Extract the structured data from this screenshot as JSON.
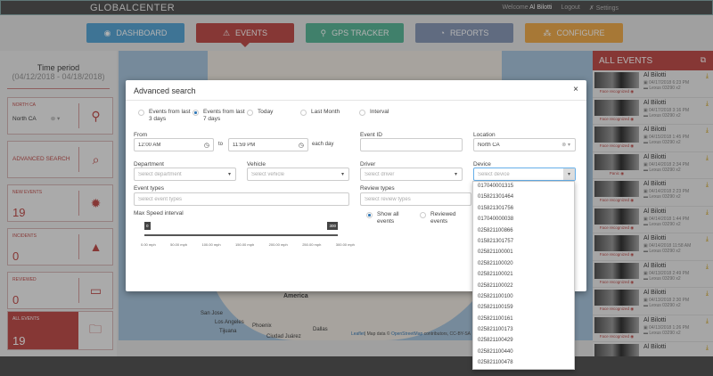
{
  "header": {
    "logo": "GLOBALCENTER",
    "welcome": "Welcome",
    "user": "Al Bilotti",
    "logout": "Logout",
    "settings": "Settings"
  },
  "nav": [
    {
      "label": "DASHBOARD",
      "color": "#5aa7d6",
      "icon": "dashboard-icon"
    },
    {
      "label": "EVENTS",
      "color": "#c0504d",
      "icon": "warning-icon"
    },
    {
      "label": "GPS TRACKER",
      "color": "#5cb89a",
      "icon": "location-pin-icon"
    },
    {
      "label": "REPORTS",
      "color": "#8a9ab8",
      "icon": "chart-pie-icon"
    },
    {
      "label": "CONFIGURE",
      "color": "#f0ad4e",
      "icon": "sitemap-icon"
    }
  ],
  "left": {
    "time_period": "Time period",
    "date_range": "(04/12/2018 - 04/18/2018)",
    "location_label": "NORTH CA",
    "location_value": "North CA",
    "advanced_search": "ADVANCED SEARCH",
    "new_events_label": "NEW EVENTS",
    "new_events": "19",
    "incidents_label": "INCIDENTS",
    "incidents": "0",
    "reviewed_label": "REVIEWED",
    "reviewed": "0",
    "all_events_label": "ALL EVENTS",
    "all_events": "19"
  },
  "map": {
    "labels": [
      "America",
      "San Jose",
      "Los Angeles",
      "Phoenix",
      "Tijuana",
      "Dallas",
      "Ciudad Juárez"
    ],
    "attribution_leaflet": "Leaflet",
    "attribution_text": "| Map data © ",
    "attribution_osm": "OpenStreetMap",
    "attribution_tail": " contributors, CC-BY-SA"
  },
  "events_panel": {
    "title": "ALL EVENTS",
    "items": [
      {
        "type": "Face recognized",
        "name": "Al Bilotti",
        "time": "04/17/2018 6:23 PM",
        "vehicle": "Lexus 03290 x2"
      },
      {
        "type": "Face recognized",
        "name": "Al Bilotti",
        "time": "04/17/2018 3:16 PM",
        "vehicle": "Lexus 03290 x2"
      },
      {
        "type": "Face recognized",
        "name": "Al Bilotti",
        "time": "04/15/2018 1:45 PM",
        "vehicle": "Lexus 03290 x2"
      },
      {
        "type": "Panic",
        "name": "Al Bilotti",
        "time": "04/14/2018 2:34 PM",
        "vehicle": "Lexus 03290 x2"
      },
      {
        "type": "Face recognized",
        "name": "Al Bilotti",
        "time": "04/14/2018 2:23 PM",
        "vehicle": "Lexus 03290 x2"
      },
      {
        "type": "Face recognized",
        "name": "Al Bilotti",
        "time": "04/14/2018 1:44 PM",
        "vehicle": "Lexus 03290 x2"
      },
      {
        "type": "Face recognized",
        "name": "Al Bilotti",
        "time": "04/14/2018 11:58 AM",
        "vehicle": "Lexus 03290 x2"
      },
      {
        "type": "Face recognized",
        "name": "Al Bilotti",
        "time": "04/13/2018 2:49 PM",
        "vehicle": "Lexus 03290 x2"
      },
      {
        "type": "Face recognized",
        "name": "Al Bilotti",
        "time": "04/13/2018 2:30 PM",
        "vehicle": "Lexus 03290 x2"
      },
      {
        "type": "Face recognized",
        "name": "Al Bilotti",
        "time": "04/13/2018 1:26 PM",
        "vehicle": "Lexus 03290 x2"
      },
      {
        "type": "",
        "name": "Al Bilotti",
        "time": "",
        "vehicle": ""
      }
    ]
  },
  "modal": {
    "title": "Advanced search",
    "close": "×",
    "periods": [
      {
        "label": "Events from last 3 days",
        "selected": false
      },
      {
        "label": "Events from last 7 days",
        "selected": true
      },
      {
        "label": "Today",
        "selected": false
      },
      {
        "label": "Last Month",
        "selected": false
      },
      {
        "label": "Interval",
        "selected": false
      }
    ],
    "from_label": "From",
    "from_value": "12:00 AM",
    "to_label": "to",
    "to_value": "11:59 PM",
    "each_day": "each day",
    "event_id_label": "Event ID",
    "event_id_value": "",
    "location_label": "Location",
    "location_value": "North CA",
    "department_label": "Department",
    "department_placeholder": "Select department",
    "vehicle_label": "Vehicle",
    "vehicle_placeholder": "Select vehicle",
    "driver_label": "Driver",
    "driver_placeholder": "Select driver",
    "device_label": "Device",
    "device_placeholder": "Select device",
    "event_types_label": "Event types",
    "event_types_placeholder": "Select event types",
    "review_types_label": "Review types",
    "review_types_placeholder": "Select review types",
    "review_options": [
      {
        "label": "Show all events",
        "selected": true
      },
      {
        "label": "Reviewed events",
        "selected": false
      }
    ],
    "speed_label": "Max Speed interval",
    "speed_min": "0",
    "speed_max": "300",
    "speed_ticks": [
      "0.00 mph",
      "50.00 mph",
      "100.00 mph",
      "150.00 mph",
      "200.00 mph",
      "250.00 mph",
      "300.00 mph"
    ],
    "device_options": [
      "017040001315",
      "015821301464",
      "015821301756",
      "017040000038",
      "025821100866",
      "015821301757",
      "025821100001",
      "025821100020",
      "025821100021",
      "025821100022",
      "025821100100",
      "025821100159",
      "025821100161",
      "025821100173",
      "025821100429",
      "025821100440",
      "025821100478"
    ]
  }
}
